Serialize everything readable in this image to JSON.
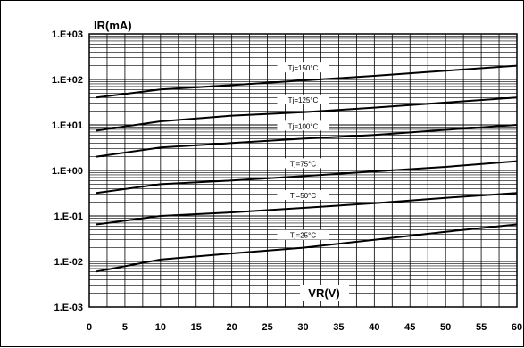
{
  "chart_data": {
    "type": "line",
    "title": "",
    "xlabel": "VR(V)",
    "ylabel": "IR(mA)",
    "xlim": [
      0,
      60
    ],
    "ylim": [
      0.001,
      1000
    ],
    "yscale": "log",
    "grid": true,
    "x_ticks": [
      "0",
      "5",
      "10",
      "15",
      "20",
      "25",
      "30",
      "35",
      "40",
      "45",
      "50",
      "55",
      "60"
    ],
    "y_ticks": [
      "1.E-03",
      "1.E-02",
      "1.E-01",
      "1.E+00",
      "1.E+01",
      "1.E+02",
      "1.E+03"
    ],
    "series": [
      {
        "name": "Tj=150°C",
        "x": [
          1,
          10,
          20,
          30,
          40,
          50,
          60
        ],
        "y": [
          40,
          60,
          75,
          95,
          120,
          155,
          200
        ],
        "label_x": 30
      },
      {
        "name": "Tj=125°C",
        "x": [
          1,
          10,
          20,
          30,
          40,
          50,
          60
        ],
        "y": [
          7.5,
          12,
          16,
          19,
          24,
          31,
          40
        ],
        "label_x": 30
      },
      {
        "name": "Tj=100°C",
        "x": [
          1,
          10,
          20,
          30,
          40,
          50,
          60
        ],
        "y": [
          2,
          3.2,
          4,
          5,
          6,
          7.8,
          10
        ],
        "label_x": 30
      },
      {
        "name": "Tj=75°C",
        "x": [
          1,
          10,
          20,
          30,
          40,
          50,
          60
        ],
        "y": [
          0.32,
          0.5,
          0.6,
          0.75,
          0.95,
          1.2,
          1.6
        ],
        "label_x": 30
      },
      {
        "name": "Tj=50°C",
        "x": [
          1,
          10,
          20,
          30,
          40,
          50,
          60
        ],
        "y": [
          0.065,
          0.1,
          0.12,
          0.15,
          0.19,
          0.25,
          0.32
        ],
        "label_x": 30
      },
      {
        "name": "Tj=25°C",
        "x": [
          1,
          10,
          20,
          30,
          40,
          50,
          60
        ],
        "y": [
          0.006,
          0.011,
          0.015,
          0.02,
          0.03,
          0.045,
          0.065
        ],
        "label_x": 30
      }
    ]
  }
}
